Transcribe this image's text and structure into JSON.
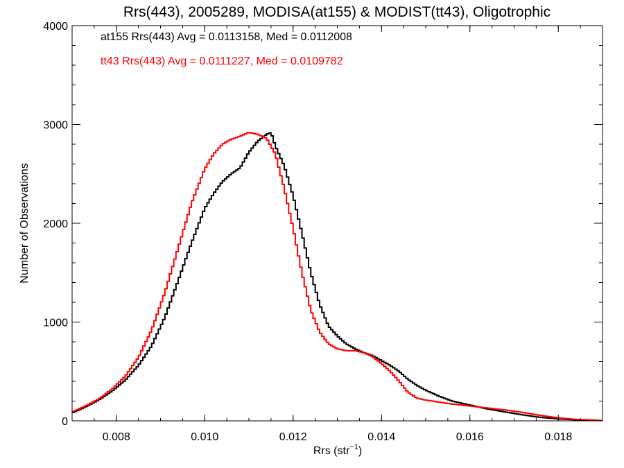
{
  "chart_data": {
    "type": "line",
    "step": true,
    "title": "Rrs(443), 2005289, MODISA(at155) & MODIST(tt43), Oligotrophic",
    "xlabel": "Rrs (str",
    "xlabel_sup": "−1",
    "xlabel_suffix": ")",
    "ylabel": "Number of Observations",
    "xlim": [
      0.007,
      0.019
    ],
    "ylim": [
      0,
      4000
    ],
    "x_ticks": [
      0.008,
      0.01,
      0.012,
      0.014,
      0.016,
      0.018
    ],
    "x_tick_labels": [
      "0.008",
      "0.010",
      "0.012",
      "0.014",
      "0.016",
      "0.018"
    ],
    "y_ticks": [
      0,
      1000,
      2000,
      3000,
      4000
    ],
    "y_tick_labels": [
      "0",
      "1000",
      "2000",
      "3000",
      "4000"
    ],
    "grid": false,
    "legend_position": "top-left",
    "legend": [
      {
        "text": "at155 Rrs(443) Avg = 0.0113158, Med = 0.0112008",
        "color": "#000000"
      },
      {
        "text": "tt43 Rrs(443) Avg = 0.0111227, Med = 0.0109782",
        "color": "#ff0000"
      }
    ],
    "series": [
      {
        "color": "#000000",
        "x": [
          0.007,
          0.0073,
          0.0076,
          0.0079,
          0.0082,
          0.0085,
          0.0088,
          0.0091,
          0.0094,
          0.0097,
          0.01,
          0.0102,
          0.0104,
          0.0106,
          0.0108,
          0.011,
          0.0112,
          0.0114,
          0.0115,
          0.0116,
          0.0118,
          0.012,
          0.0122,
          0.0124,
          0.0126,
          0.0128,
          0.013,
          0.0132,
          0.0134,
          0.0136,
          0.0138,
          0.014,
          0.0142,
          0.0144,
          0.0146,
          0.0148,
          0.015,
          0.0153,
          0.0156,
          0.016,
          0.0164,
          0.0168,
          0.0172,
          0.0176,
          0.018,
          0.0184,
          0.0188,
          0.019
        ],
        "y": [
          80,
          140,
          210,
          300,
          410,
          560,
          760,
          1050,
          1420,
          1800,
          2150,
          2300,
          2420,
          2500,
          2560,
          2720,
          2830,
          2900,
          2920,
          2780,
          2580,
          2280,
          1900,
          1500,
          1180,
          960,
          860,
          780,
          730,
          690,
          660,
          610,
          560,
          500,
          420,
          360,
          310,
          250,
          200,
          160,
          120,
          90,
          60,
          35,
          20,
          10,
          5,
          3
        ]
      },
      {
        "color": "#ff0000",
        "x": [
          0.007,
          0.0073,
          0.0076,
          0.0079,
          0.0082,
          0.0085,
          0.0088,
          0.0091,
          0.0094,
          0.0097,
          0.01,
          0.0102,
          0.0104,
          0.0106,
          0.0108,
          0.011,
          0.0112,
          0.0114,
          0.0116,
          0.0118,
          0.012,
          0.0122,
          0.0124,
          0.0126,
          0.0128,
          0.013,
          0.0132,
          0.0134,
          0.0136,
          0.0138,
          0.014,
          0.0142,
          0.0144,
          0.0146,
          0.0148,
          0.015,
          0.0153,
          0.0156,
          0.016,
          0.0164,
          0.0168,
          0.0172,
          0.0176,
          0.018,
          0.0184,
          0.0188,
          0.019
        ],
        "y": [
          90,
          150,
          220,
          320,
          450,
          640,
          920,
          1300,
          1750,
          2200,
          2550,
          2700,
          2800,
          2850,
          2880,
          2920,
          2900,
          2860,
          2700,
          2350,
          1950,
          1500,
          1120,
          900,
          780,
          730,
          710,
          710,
          690,
          650,
          580,
          500,
          400,
          290,
          230,
          210,
          190,
          170,
          150,
          130,
          110,
          85,
          55,
          30,
          15,
          8,
          4
        ]
      }
    ]
  }
}
